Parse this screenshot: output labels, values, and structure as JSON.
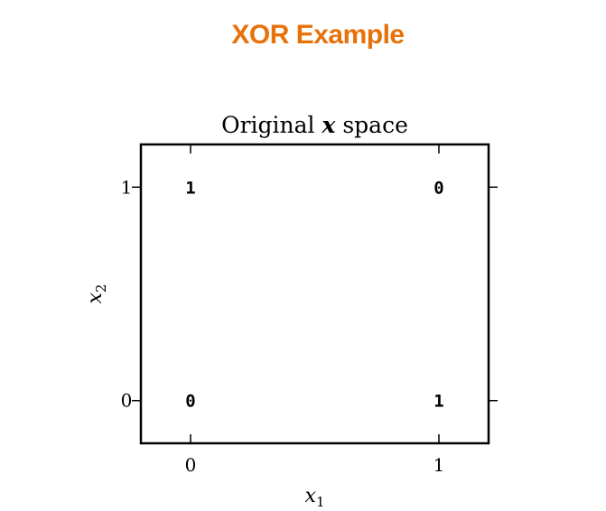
{
  "slide": {
    "title": "XOR Example"
  },
  "chart_data": {
    "type": "scatter",
    "title": "Original x space",
    "title_parts": {
      "before": "Original ",
      "symbol": "x",
      "after": " space"
    },
    "xlabel": "x",
    "xlabel_subscript": "1",
    "ylabel": "x",
    "ylabel_subscript": "2",
    "xlim": [
      -0.2,
      1.2
    ],
    "ylim": [
      -0.2,
      1.2
    ],
    "xticks": [
      0,
      1
    ],
    "yticks": [
      0,
      1
    ],
    "xtick_labels": [
      "0",
      "1"
    ],
    "ytick_labels": [
      "0",
      "1"
    ],
    "grid": false,
    "points": [
      {
        "x": 0,
        "y": 0,
        "label": "0"
      },
      {
        "x": 1,
        "y": 0,
        "label": "1"
      },
      {
        "x": 0,
        "y": 1,
        "label": "1"
      },
      {
        "x": 1,
        "y": 1,
        "label": "0"
      }
    ]
  },
  "colors": {
    "title": "#e8710a",
    "axes": "#000000"
  }
}
